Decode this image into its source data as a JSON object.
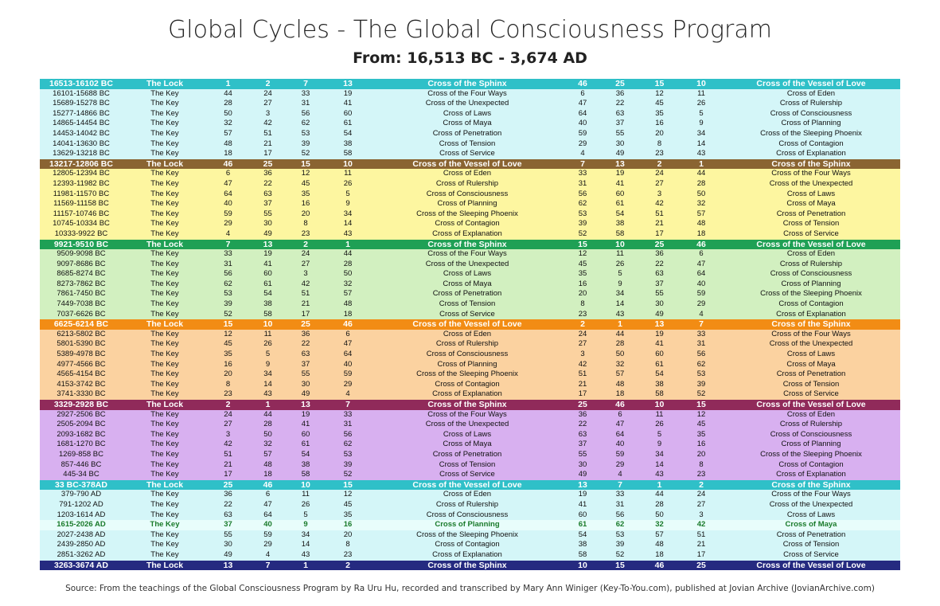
{
  "title": "Global Cycles - The Global Consciousness Program",
  "subtitle": "From: 16,513 BC - 3,674 AD",
  "source": "Source: From the teachings of the Global Consciousness Program by Ra Uru Hu, recorded and transcribed by Mary Ann Winiger (Key-To-You.com), published at Jovian Archive (JovianArchive.com)",
  "colors": {
    "headers": [
      "#2fc0c8",
      "#8a6432",
      "#1fa055",
      "#f28c14",
      "#902a5a",
      "#2fc0c8",
      "#252a80"
    ],
    "bodies": [
      "#d4f6f8",
      "#fdf6a0",
      "#d2f0c0",
      "#fbd2a0",
      "#d8b0f0",
      "#d4f6f8"
    ],
    "highlight_row": "#e8fdfb",
    "highlight_text": "#1a7a2a"
  },
  "table": {
    "sections": [
      {
        "header": [
          "16513-16102 BC",
          "The Lock",
          "1",
          "2",
          "7",
          "13",
          "Cross of the Sphinx",
          "46",
          "25",
          "15",
          "10",
          "Cross of the Vessel of Love"
        ],
        "rows": [
          [
            "16101-15688 BC",
            "The Key",
            "44",
            "24",
            "33",
            "19",
            "Cross of the Four Ways",
            "6",
            "36",
            "12",
            "11",
            "Cross of Eden"
          ],
          [
            "15689-15278 BC",
            "The Key",
            "28",
            "27",
            "31",
            "41",
            "Cross of the Unexpected",
            "47",
            "22",
            "45",
            "26",
            "Cross of Rulership"
          ],
          [
            "15277-14866 BC",
            "The Key",
            "50",
            "3",
            "56",
            "60",
            "Cross of Laws",
            "64",
            "63",
            "35",
            "5",
            "Cross of Consciousness"
          ],
          [
            "14865-14454 BC",
            "The Key",
            "32",
            "42",
            "62",
            "61",
            "Cross of Maya",
            "40",
            "37",
            "16",
            "9",
            "Cross of Planning"
          ],
          [
            "14453-14042 BC",
            "The Key",
            "57",
            "51",
            "53",
            "54",
            "Cross of Penetration",
            "59",
            "55",
            "20",
            "34",
            "Cross of the Sleeping Phoenix"
          ],
          [
            "14041-13630 BC",
            "The Key",
            "48",
            "21",
            "39",
            "38",
            "Cross of Tension",
            "29",
            "30",
            "8",
            "14",
            "Cross of Contagion"
          ],
          [
            "13629-13218 BC",
            "The Key",
            "18",
            "17",
            "52",
            "58",
            "Cross of Service",
            "4",
            "49",
            "23",
            "43",
            "Cross of Explanation"
          ]
        ]
      },
      {
        "header": [
          "13217-12806 BC",
          "The Lock",
          "46",
          "25",
          "15",
          "10",
          "Cross of the Vessel of Love",
          "7",
          "13",
          "2",
          "1",
          "Cross of the Sphinx"
        ],
        "rows": [
          [
            "12805-12394 BC",
            "The Key",
            "6",
            "36",
            "12",
            "11",
            "Cross of Eden",
            "33",
            "19",
            "24",
            "44",
            "Cross of the Four Ways"
          ],
          [
            "12393-11982 BC",
            "The Key",
            "47",
            "22",
            "45",
            "26",
            "Cross of Rulership",
            "31",
            "41",
            "27",
            "28",
            "Cross of the Unexpected"
          ],
          [
            "11981-11570 BC",
            "The Key",
            "64",
            "63",
            "35",
            "5",
            "Cross of Consciousness",
            "56",
            "60",
            "3",
            "50",
            "Cross of Laws"
          ],
          [
            "11569-11158 BC",
            "The Key",
            "40",
            "37",
            "16",
            "9",
            "Cross of Planning",
            "62",
            "61",
            "42",
            "32",
            "Cross of Maya"
          ],
          [
            "11157-10746 BC",
            "The Key",
            "59",
            "55",
            "20",
            "34",
            "Cross of the Sleeping Phoenix",
            "53",
            "54",
            "51",
            "57",
            "Cross of Penetration"
          ],
          [
            "10745-10334 BC",
            "The Key",
            "29",
            "30",
            "8",
            "14",
            "Cross of Contagion",
            "39",
            "38",
            "21",
            "48",
            "Cross of Tension"
          ],
          [
            "10333-9922 BC",
            "The Key",
            "4",
            "49",
            "23",
            "43",
            "Cross of Explanation",
            "52",
            "58",
            "17",
            "18",
            "Cross of Service"
          ]
        ]
      },
      {
        "header": [
          "9921-9510 BC",
          "The Lock",
          "7",
          "13",
          "2",
          "1",
          "Cross of the Sphinx",
          "15",
          "10",
          "25",
          "46",
          "Cross of the Vessel of Love"
        ],
        "rows": [
          [
            "9509-9098 BC",
            "The Key",
            "33",
            "19",
            "24",
            "44",
            "Cross of the Four Ways",
            "12",
            "11",
            "36",
            "6",
            "Cross of Eden"
          ],
          [
            "9097-8686 BC",
            "The Key",
            "31",
            "41",
            "27",
            "28",
            "Cross of the Unexpected",
            "45",
            "26",
            "22",
            "47",
            "Cross of Rulership"
          ],
          [
            "8685-8274 BC",
            "The Key",
            "56",
            "60",
            "3",
            "50",
            "Cross of Laws",
            "35",
            "5",
            "63",
            "64",
            "Cross of Consciousness"
          ],
          [
            "8273-7862 BC",
            "The Key",
            "62",
            "61",
            "42",
            "32",
            "Cross of Maya",
            "16",
            "9",
            "37",
            "40",
            "Cross of Planning"
          ],
          [
            "7861-7450 BC",
            "The Key",
            "53",
            "54",
            "51",
            "57",
            "Cross of Penetration",
            "20",
            "34",
            "55",
            "59",
            "Cross of the Sleeping Phoenix"
          ],
          [
            "7449-7038 BC",
            "The Key",
            "39",
            "38",
            "21",
            "48",
            "Cross of Tension",
            "8",
            "14",
            "30",
            "29",
            "Cross of Contagion"
          ],
          [
            "7037-6626 BC",
            "The Key",
            "52",
            "58",
            "17",
            "18",
            "Cross of Service",
            "23",
            "43",
            "49",
            "4",
            "Cross of Explanation"
          ]
        ]
      },
      {
        "header": [
          "6625-6214 BC",
          "The Lock",
          "15",
          "10",
          "25",
          "46",
          "Cross of the Vessel of Love",
          "2",
          "1",
          "13",
          "7",
          "Cross of the Sphinx"
        ],
        "rows": [
          [
            "6213-5802 BC",
            "The Key",
            "12",
            "11",
            "36",
            "6",
            "Cross of Eden",
            "24",
            "44",
            "19",
            "33",
            "Cross of the Four Ways"
          ],
          [
            "5801-5390 BC",
            "The Key",
            "45",
            "26",
            "22",
            "47",
            "Cross of Rulership",
            "27",
            "28",
            "41",
            "31",
            "Cross of the Unexpected"
          ],
          [
            "5389-4978 BC",
            "The Key",
            "35",
            "5",
            "63",
            "64",
            "Cross of Consciousness",
            "3",
            "50",
            "60",
            "56",
            "Cross of Laws"
          ],
          [
            "4977-4566 BC",
            "The Key",
            "16",
            "9",
            "37",
            "40",
            "Cross of Planning",
            "42",
            "32",
            "61",
            "62",
            "Cross of Maya"
          ],
          [
            "4565-4154 BC",
            "The Key",
            "20",
            "34",
            "55",
            "59",
            "Cross of the Sleeping Phoenix",
            "51",
            "57",
            "54",
            "53",
            "Cross of Penetration"
          ],
          [
            "4153-3742 BC",
            "The Key",
            "8",
            "14",
            "30",
            "29",
            "Cross of Contagion",
            "21",
            "48",
            "38",
            "39",
            "Cross of Tension"
          ],
          [
            "3741-3330 BC",
            "The Key",
            "23",
            "43",
            "49",
            "4",
            "Cross of Explanation",
            "17",
            "18",
            "58",
            "52",
            "Cross of Service"
          ]
        ]
      },
      {
        "header": [
          "3329-2928 BC",
          "The Lock",
          "2",
          "1",
          "13",
          "7",
          "Cross of the Sphinx",
          "25",
          "46",
          "10",
          "15",
          "Cross of the Vessel of Love"
        ],
        "rows": [
          [
            "2927-2506 BC",
            "The Key",
            "24",
            "44",
            "19",
            "33",
            "Cross of the Four Ways",
            "36",
            "6",
            "11",
            "12",
            "Cross of Eden"
          ],
          [
            "2505-2094 BC",
            "The Key",
            "27",
            "28",
            "41",
            "31",
            "Cross of the Unexpected",
            "22",
            "47",
            "26",
            "45",
            "Cross of Rulership"
          ],
          [
            "2093-1682 BC",
            "The Key",
            "3",
            "50",
            "60",
            "56",
            "Cross of Laws",
            "63",
            "64",
            "5",
            "35",
            "Cross of Consciousness"
          ],
          [
            "1681-1270 BC",
            "The Key",
            "42",
            "32",
            "61",
            "62",
            "Cross of Maya",
            "37",
            "40",
            "9",
            "16",
            "Cross of Planning"
          ],
          [
            "1269-858 BC",
            "The Key",
            "51",
            "57",
            "54",
            "53",
            "Cross of Penetration",
            "55",
            "59",
            "34",
            "20",
            "Cross of the Sleeping Phoenix"
          ],
          [
            "857-446 BC",
            "The Key",
            "21",
            "48",
            "38",
            "39",
            "Cross of Tension",
            "30",
            "29",
            "14",
            "8",
            "Cross of Contagion"
          ],
          [
            "445-34 BC",
            "The Key",
            "17",
            "18",
            "58",
            "52",
            "Cross of Service",
            "49",
            "4",
            "43",
            "23",
            "Cross of Explanation"
          ]
        ]
      },
      {
        "header": [
          "33 BC-378AD",
          "The Lock",
          "25",
          "46",
          "10",
          "15",
          "Cross of the Vessel of Love",
          "13",
          "7",
          "1",
          "2",
          "Cross of the Sphinx"
        ],
        "rows": [
          [
            "379-790 AD",
            "The Key",
            "36",
            "6",
            "11",
            "12",
            "Cross of Eden",
            "19",
            "33",
            "44",
            "24",
            "Cross of the Four Ways"
          ],
          [
            "791-1202 AD",
            "The Key",
            "22",
            "47",
            "26",
            "45",
            "Cross of Rulership",
            "41",
            "31",
            "28",
            "27",
            "Cross of the Unexpected"
          ],
          [
            "1203-1614 AD",
            "The Key",
            "63",
            "64",
            "5",
            "35",
            "Cross of Consciousness",
            "60",
            "56",
            "50",
            "3",
            "Cross of Laws"
          ],
          [
            "1615-2026 AD",
            "The Key",
            "37",
            "40",
            "9",
            "16",
            "Cross of Planning",
            "61",
            "62",
            "32",
            "42",
            "Cross of Maya"
          ],
          [
            "2027-2438 AD",
            "The Key",
            "55",
            "59",
            "34",
            "20",
            "Cross of the Sleeping Phoenix",
            "54",
            "53",
            "57",
            "51",
            "Cross of Penetration"
          ],
          [
            "2439-2850 AD",
            "The Key",
            "30",
            "29",
            "14",
            "8",
            "Cross of Contagion",
            "38",
            "39",
            "48",
            "21",
            "Cross of Tension"
          ],
          [
            "2851-3262 AD",
            "The Key",
            "49",
            "4",
            "43",
            "23",
            "Cross of Explanation",
            "58",
            "52",
            "18",
            "17",
            "Cross of Service"
          ]
        ]
      }
    ],
    "final_header": [
      "3263-3674 AD",
      "The Lock",
      "13",
      "7",
      "1",
      "2",
      "Cross of the Sphinx",
      "10",
      "15",
      "46",
      "25",
      "Cross of the Vessel of Love"
    ],
    "highlight": {
      "section": 5,
      "row": 3
    }
  }
}
